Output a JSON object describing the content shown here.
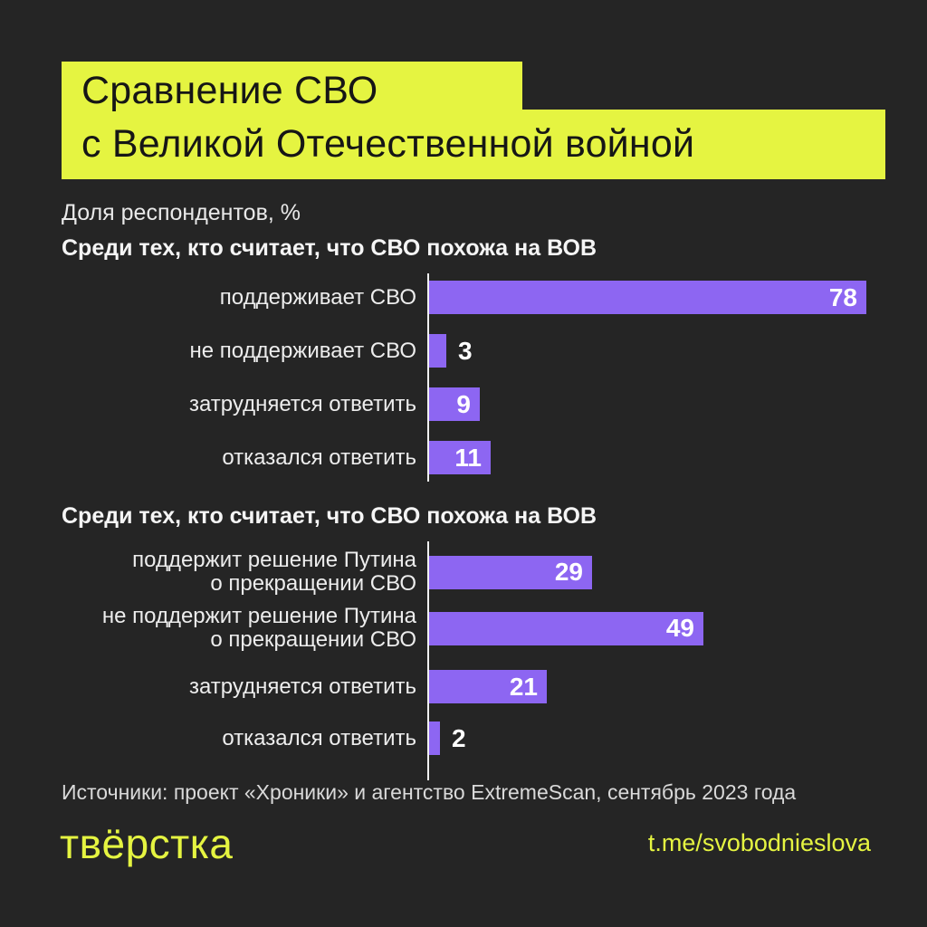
{
  "title": {
    "line1": "Сравнение СВО",
    "line2": "с Великой Отечественной войной"
  },
  "subtitle": "Доля респондентов, %",
  "colors": {
    "background": "#252525",
    "accent_yellow": "#e5f441",
    "bar_purple": "#8d66f2",
    "axis_line": "#f0f0f0",
    "text_light": "#ededed",
    "value_white": "#ffffff"
  },
  "chart_data": [
    {
      "type": "bar",
      "orientation": "horizontal",
      "title": "Среди тех, кто считает, что СВО похожа на ВОВ",
      "unit": "%",
      "categories": [
        "поддерживает СВО",
        "не поддерживает СВО",
        "затрудняется ответить",
        "отказался ответить"
      ],
      "values": [
        78,
        3,
        9,
        11
      ],
      "label_lines": [
        [
          "поддерживает СВО"
        ],
        [
          "не поддерживает СВО"
        ],
        [
          "затрудняется ответить"
        ],
        [
          "отказался ответить"
        ]
      ],
      "value_labels_shown": true,
      "grid": false,
      "legend": false
    },
    {
      "type": "bar",
      "orientation": "horizontal",
      "title": "Среди тех, кто считает, что СВО похожа на ВОВ",
      "unit": "%",
      "categories": [
        "поддержит решение Путина о прекращении СВО",
        "не поддержит решение Путина о прекращении СВО",
        "затрудняется ответить",
        "отказался ответить"
      ],
      "values": [
        29,
        49,
        21,
        2
      ],
      "label_lines": [
        [
          "поддержит решение Путина",
          "о прекращении СВО"
        ],
        [
          "не поддержит решение Путина",
          "о прекращении СВО"
        ],
        [
          "затрудняется ответить"
        ],
        [
          "отказался ответить"
        ]
      ],
      "value_labels_shown": true,
      "grid": false,
      "legend": false
    }
  ],
  "footer": {
    "source": "Источники: проект «Хроники» и агентство ExtremeScan, сентябрь 2023 года",
    "logo": "твёрстка",
    "link": "t.me/svobodnieslova"
  }
}
